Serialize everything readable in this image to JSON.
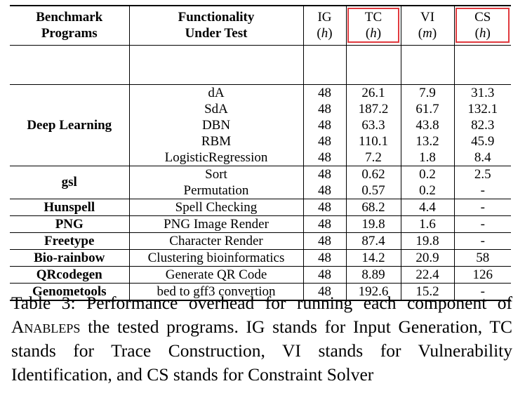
{
  "table": {
    "headers": [
      {
        "line1": "Benchmark",
        "line2": "Programs"
      },
      {
        "line1": "Functionality",
        "line2": "Under Test"
      },
      {
        "line1": "IG",
        "unit": "h"
      },
      {
        "line1": "TC",
        "unit": "h"
      },
      {
        "line1": "VI",
        "unit": "m"
      },
      {
        "line1": "CS",
        "unit": "h"
      }
    ],
    "groups": [
      {
        "program": "Deep Learning",
        "rows": [
          {
            "func": "dA",
            "ig": "48",
            "tc": "26.1",
            "vi": "7.9",
            "cs": "31.3"
          },
          {
            "func": "SdA",
            "ig": "48",
            "tc": "187.2",
            "vi": "61.7",
            "cs": "132.1"
          },
          {
            "func": "DBN",
            "ig": "48",
            "tc": "63.3",
            "vi": "43.8",
            "cs": "82.3"
          },
          {
            "func": "RBM",
            "ig": "48",
            "tc": "110.1",
            "vi": "13.2",
            "cs": "45.9"
          },
          {
            "func": "LogisticRegression",
            "ig": "48",
            "tc": "7.2",
            "vi": "1.8",
            "cs": "8.4"
          }
        ]
      },
      {
        "program": "gsl",
        "rows": [
          {
            "func": "Sort",
            "ig": "48",
            "tc": "0.62",
            "vi": "0.2",
            "cs": "2.5"
          },
          {
            "func": "Permutation",
            "ig": "48",
            "tc": "0.57",
            "vi": "0.2",
            "cs": "-"
          }
        ]
      },
      {
        "program": "Hunspell",
        "rows": [
          {
            "func": "Spell Checking",
            "ig": "48",
            "tc": "68.2",
            "vi": "4.4",
            "cs": "-"
          }
        ]
      },
      {
        "program": "PNG",
        "rows": [
          {
            "func": "PNG Image Render",
            "ig": "48",
            "tc": "19.8",
            "vi": "1.6",
            "cs": "-"
          }
        ]
      },
      {
        "program": "Freetype",
        "rows": [
          {
            "func": "Character Render",
            "ig": "48",
            "tc": "87.4",
            "vi": "19.8",
            "cs": "-"
          }
        ]
      },
      {
        "program": "Bio-rainbow",
        "rows": [
          {
            "func": "Clustering bioinformatics",
            "ig": "48",
            "tc": "14.2",
            "vi": "20.9",
            "cs": "58"
          }
        ]
      },
      {
        "program": "QRcodegen",
        "rows": [
          {
            "func": "Generate QR Code",
            "ig": "48",
            "tc": "8.89",
            "vi": "22.4",
            "cs": "126"
          }
        ]
      },
      {
        "program": "Genometools",
        "rows": [
          {
            "func": "bed to gff3 convertion",
            "ig": "48",
            "tc": "192.6",
            "vi": "15.2",
            "cs": "-"
          }
        ]
      }
    ]
  },
  "highlight_color": "#e0393e",
  "caption": {
    "prefix": "Table 3: Performance overhead for running each component of ",
    "tool": "Anableps",
    "suffix": " the tested programs. IG stands for Input Generation, TC stands for Trace Construction, VI stands for Vulnerability Identification, and CS stands for Constraint Solver"
  }
}
